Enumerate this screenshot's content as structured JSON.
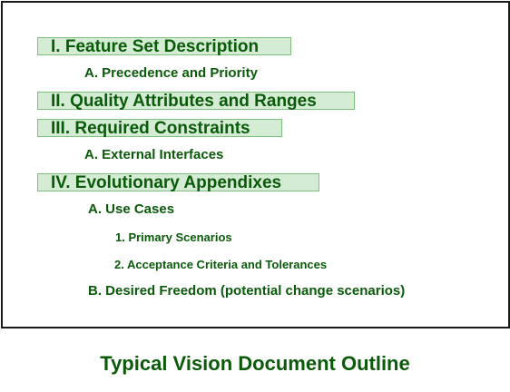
{
  "outline": {
    "h1": "I. Feature Set Description",
    "h1_a": "A. Precedence and Priority",
    "h2": "II. Quality Attributes and Ranges",
    "h3": "III. Required Constraints",
    "h3_a": "A. External Interfaces",
    "h4": "IV. Evolutionary Appendixes",
    "h4_a": "A. Use Cases",
    "h4_a_1": "1. Primary Scenarios",
    "h4_a_2": "2. Acceptance Criteria and Tolerances",
    "h4_b": "B. Desired Freedom (potential change scenarios)"
  },
  "caption": "Typical Vision Document Outline",
  "colors": {
    "text": "#0a5a0a",
    "heading_fill": "#d4ecd4",
    "heading_border": "#7fbf7f",
    "frame_border": "#1a1a1a"
  }
}
